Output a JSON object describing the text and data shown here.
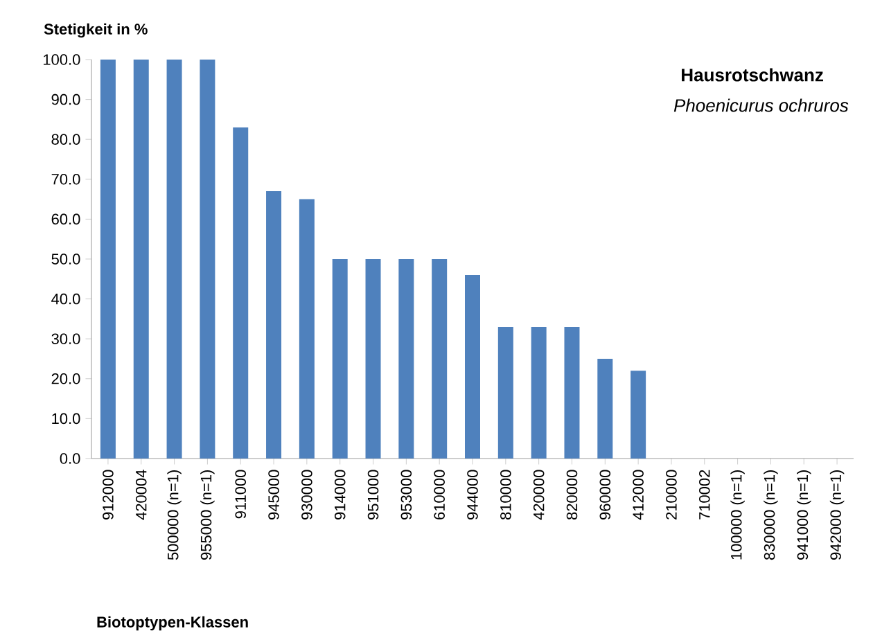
{
  "chart_data": {
    "type": "bar",
    "title": "Hausrotschwanz",
    "subtitle": "Phoenicurus ochruros",
    "xlabel": "Biotoptypen-Klassen",
    "ylabel": "Stetigkeit in %",
    "categories": [
      "912000",
      "420004",
      "500000 (n=1)",
      "955000 (n=1)",
      "911000",
      "945000",
      "930000",
      "914000",
      "951000",
      "953000",
      "610000",
      "944000",
      "810000",
      "420000",
      "820000",
      "960000",
      "412000",
      "210000",
      "710002",
      "100000 (n=1)",
      "830000 (n=1)",
      "941000 (n=1)",
      "942000 (n=1)"
    ],
    "values": [
      100,
      100,
      100,
      100,
      83,
      67,
      65,
      50,
      50,
      50,
      50,
      46,
      33,
      33,
      33,
      25,
      22,
      0,
      0,
      0,
      0,
      0,
      0
    ],
    "color": "#4f81bd",
    "ylim": [
      0,
      100
    ],
    "yticks": [
      {
        "value": 0,
        "label": "0.0"
      },
      {
        "value": 10,
        "label": "10.0"
      },
      {
        "value": 20,
        "label": "20.0"
      },
      {
        "value": 30,
        "label": "30.0"
      },
      {
        "value": 40,
        "label": "40.0"
      },
      {
        "value": 50,
        "label": "50.0"
      },
      {
        "value": 60,
        "label": "60.0"
      },
      {
        "value": 70,
        "label": "70.0"
      },
      {
        "value": 80,
        "label": "80.0"
      },
      {
        "value": 90,
        "label": "90.0"
      },
      {
        "value": 100,
        "label": "100.0"
      }
    ],
    "grid": false
  }
}
